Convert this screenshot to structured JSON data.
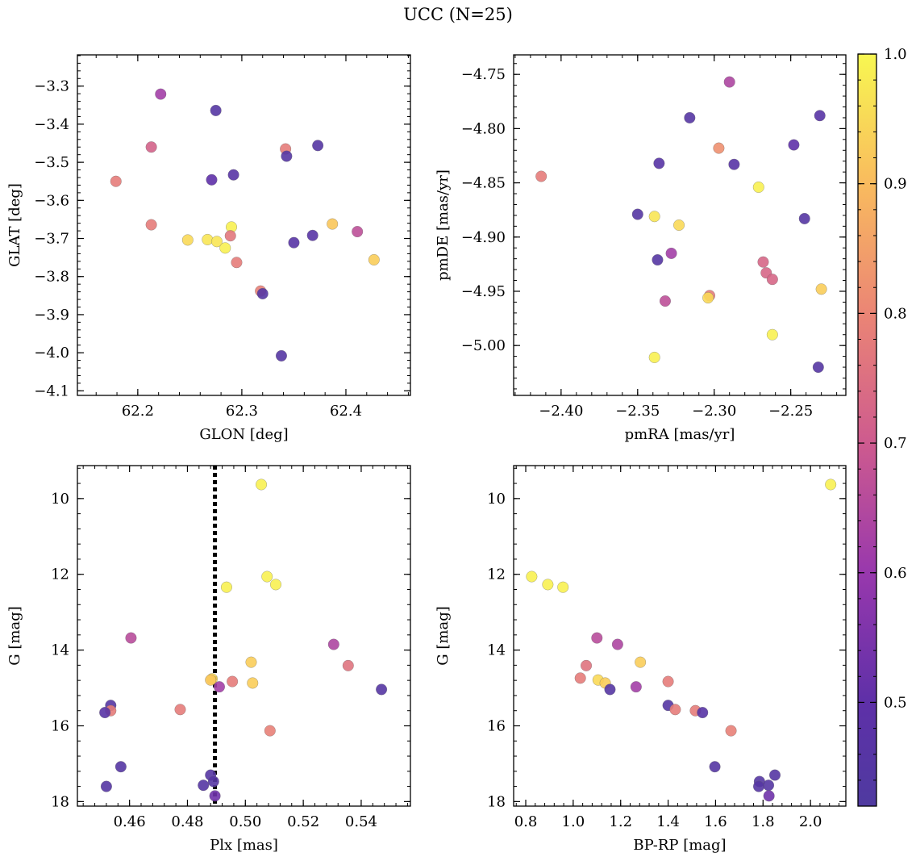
{
  "figure": {
    "title": "UCC (N=25)"
  },
  "colorbar": {
    "colormap": "plasma",
    "range": [
      0.42,
      1.0
    ],
    "ticks": [
      0.5,
      0.6,
      0.7,
      0.8,
      0.9,
      1.0
    ],
    "tick_labels": [
      "0.5",
      "0.6",
      "0.7",
      "0.8",
      "0.9",
      "1.0"
    ]
  },
  "chart_data": [
    {
      "type": "scatter",
      "xlabel": "GLON [deg]",
      "ylabel": "GLAT [deg]",
      "xlim": [
        62.142,
        62.462
      ],
      "ylim": [
        -4.112,
        -3.218
      ],
      "y_inverted": false,
      "xticks": [
        62.2,
        62.3,
        62.4
      ],
      "xtick_labels": [
        "62.2",
        "62.3",
        "62.4"
      ],
      "yticks": [
        -4.1,
        -4.0,
        -3.9,
        -3.8,
        -3.7,
        -3.6,
        -3.5,
        -3.4,
        -3.3
      ],
      "ytick_labels": [
        "−4.1",
        "−4.0",
        "−3.9",
        "−3.8",
        "−3.7",
        "−3.6",
        "−3.5",
        "−3.4",
        "−3.3"
      ],
      "points": [
        {
          "x": 62.222,
          "y": -3.321,
          "c": 0.62
        },
        {
          "x": 62.275,
          "y": -3.364,
          "c": 0.45
        },
        {
          "x": 62.373,
          "y": -3.456,
          "c": 0.45
        },
        {
          "x": 62.213,
          "y": -3.46,
          "c": 0.72
        },
        {
          "x": 62.342,
          "y": -3.465,
          "c": 0.78
        },
        {
          "x": 62.343,
          "y": -3.484,
          "c": 0.45
        },
        {
          "x": 62.292,
          "y": -3.533,
          "c": 0.47
        },
        {
          "x": 62.271,
          "y": -3.546,
          "c": 0.5
        },
        {
          "x": 62.179,
          "y": -3.55,
          "c": 0.78
        },
        {
          "x": 62.213,
          "y": -3.664,
          "c": 0.78
        },
        {
          "x": 62.387,
          "y": -3.662,
          "c": 0.92
        },
        {
          "x": 62.29,
          "y": -3.67,
          "c": 0.99
        },
        {
          "x": 62.411,
          "y": -3.682,
          "c": 0.67
        },
        {
          "x": 62.368,
          "y": -3.692,
          "c": 0.47
        },
        {
          "x": 62.289,
          "y": -3.693,
          "c": 0.77
        },
        {
          "x": 62.267,
          "y": -3.703,
          "c": 0.97
        },
        {
          "x": 62.248,
          "y": -3.704,
          "c": 0.95
        },
        {
          "x": 62.276,
          "y": -3.708,
          "c": 0.97
        },
        {
          "x": 62.35,
          "y": -3.711,
          "c": 0.47
        },
        {
          "x": 62.284,
          "y": -3.725,
          "c": 0.99
        },
        {
          "x": 62.427,
          "y": -3.756,
          "c": 0.93
        },
        {
          "x": 62.295,
          "y": -3.763,
          "c": 0.78
        },
        {
          "x": 62.318,
          "y": -3.838,
          "c": 0.79
        },
        {
          "x": 62.32,
          "y": -3.845,
          "c": 0.45
        },
        {
          "x": 62.338,
          "y": -4.008,
          "c": 0.45
        }
      ]
    },
    {
      "type": "scatter",
      "xlabel": "pmRA [mas/yr]",
      "ylabel": "pmDE [mas/yr]",
      "xlim": [
        -2.431,
        -2.214
      ],
      "ylim": [
        -5.046,
        -4.732
      ],
      "y_inverted": false,
      "xticks": [
        -2.4,
        -2.35,
        -2.3,
        -2.25
      ],
      "xtick_labels": [
        "−2.40",
        "−2.35",
        "−2.30",
        "−2.25"
      ],
      "yticks": [
        -5.0,
        -4.95,
        -4.9,
        -4.85,
        -4.8,
        -4.75
      ],
      "ytick_labels": [
        "−5.00",
        "−4.95",
        "−4.90",
        "−4.85",
        "−4.80",
        "−4.75"
      ],
      "points": [
        {
          "x": -2.29,
          "y": -4.757,
          "c": 0.64
        },
        {
          "x": -2.316,
          "y": -4.79,
          "c": 0.45
        },
        {
          "x": -2.231,
          "y": -4.788,
          "c": 0.47
        },
        {
          "x": -2.248,
          "y": -4.815,
          "c": 0.5
        },
        {
          "x": -2.297,
          "y": -4.818,
          "c": 0.82
        },
        {
          "x": -2.336,
          "y": -4.832,
          "c": 0.47
        },
        {
          "x": -2.287,
          "y": -4.833,
          "c": 0.47
        },
        {
          "x": -2.413,
          "y": -4.844,
          "c": 0.78
        },
        {
          "x": -2.271,
          "y": -4.854,
          "c": 0.99
        },
        {
          "x": -2.35,
          "y": -4.879,
          "c": 0.45
        },
        {
          "x": -2.339,
          "y": -4.881,
          "c": 0.97
        },
        {
          "x": -2.241,
          "y": -4.883,
          "c": 0.45
        },
        {
          "x": -2.323,
          "y": -4.889,
          "c": 0.95
        },
        {
          "x": -2.328,
          "y": -4.915,
          "c": 0.62
        },
        {
          "x": -2.337,
          "y": -4.921,
          "c": 0.45
        },
        {
          "x": -2.268,
          "y": -4.923,
          "c": 0.73
        },
        {
          "x": -2.266,
          "y": -4.933,
          "c": 0.73
        },
        {
          "x": -2.262,
          "y": -4.939,
          "c": 0.73
        },
        {
          "x": -2.23,
          "y": -4.948,
          "c": 0.93
        },
        {
          "x": -2.303,
          "y": -4.954,
          "c": 0.78
        },
        {
          "x": -2.304,
          "y": -4.956,
          "c": 0.95
        },
        {
          "x": -2.332,
          "y": -4.959,
          "c": 0.67
        },
        {
          "x": -2.262,
          "y": -4.99,
          "c": 0.99
        },
        {
          "x": -2.339,
          "y": -5.011,
          "c": 0.99
        },
        {
          "x": -2.232,
          "y": -5.02,
          "c": 0.45
        }
      ]
    },
    {
      "type": "scatter",
      "xlabel": "Plx [mas]",
      "ylabel": "G [mag]",
      "xlim": [
        0.442,
        0.557
      ],
      "ylim": [
        18.12,
        9.13
      ],
      "y_inverted": true,
      "xticks": [
        0.46,
        0.48,
        0.5,
        0.52,
        0.54
      ],
      "xtick_labels": [
        "0.46",
        "0.48",
        "0.50",
        "0.52",
        "0.54"
      ],
      "yticks": [
        10,
        12,
        14,
        16,
        18
      ],
      "ytick_labels": [
        "10",
        "12",
        "14",
        "16",
        "18"
      ],
      "vline": {
        "x": 0.4895,
        "style": "dotted"
      },
      "points": [
        {
          "x": 0.5055,
          "y": 9.63,
          "c": 0.99
        },
        {
          "x": 0.5075,
          "y": 12.06,
          "c": 0.99
        },
        {
          "x": 0.5105,
          "y": 12.27,
          "c": 0.99
        },
        {
          "x": 0.4935,
          "y": 12.34,
          "c": 0.99
        },
        {
          "x": 0.4605,
          "y": 13.68,
          "c": 0.66
        },
        {
          "x": 0.5305,
          "y": 13.85,
          "c": 0.64
        },
        {
          "x": 0.502,
          "y": 14.32,
          "c": 0.93
        },
        {
          "x": 0.5355,
          "y": 14.41,
          "c": 0.76
        },
        {
          "x": 0.4885,
          "y": 14.76,
          "c": 0.95
        },
        {
          "x": 0.488,
          "y": 14.79,
          "c": 0.92
        },
        {
          "x": 0.4955,
          "y": 14.83,
          "c": 0.78
        },
        {
          "x": 0.5025,
          "y": 14.87,
          "c": 0.93
        },
        {
          "x": 0.491,
          "y": 14.97,
          "c": 0.62
        },
        {
          "x": 0.547,
          "y": 15.04,
          "c": 0.45
        },
        {
          "x": 0.4535,
          "y": 15.46,
          "c": 0.45
        },
        {
          "x": 0.4775,
          "y": 15.57,
          "c": 0.78
        },
        {
          "x": 0.4535,
          "y": 15.6,
          "c": 0.78
        },
        {
          "x": 0.4515,
          "y": 15.65,
          "c": 0.47
        },
        {
          "x": 0.5085,
          "y": 16.13,
          "c": 0.79
        },
        {
          "x": 0.457,
          "y": 17.08,
          "c": 0.45
        },
        {
          "x": 0.488,
          "y": 17.3,
          "c": 0.45
        },
        {
          "x": 0.489,
          "y": 17.47,
          "c": 0.45
        },
        {
          "x": 0.4855,
          "y": 17.57,
          "c": 0.45
        },
        {
          "x": 0.452,
          "y": 17.6,
          "c": 0.45
        },
        {
          "x": 0.4895,
          "y": 17.85,
          "c": 0.53
        }
      ]
    },
    {
      "type": "scatter",
      "xlabel": "BP-RP [mag]",
      "ylabel": "G [mag]",
      "xlim": [
        0.749,
        2.149
      ],
      "ylim": [
        18.12,
        9.13
      ],
      "y_inverted": true,
      "xticks": [
        0.8,
        1.0,
        1.2,
        1.4,
        1.6,
        1.8,
        2.0
      ],
      "xtick_labels": [
        "0.8",
        "1.0",
        "1.2",
        "1.4",
        "1.6",
        "1.8",
        "2.0"
      ],
      "yticks": [
        10,
        12,
        14,
        16,
        18
      ],
      "ytick_labels": [
        "10",
        "12",
        "14",
        "16",
        "18"
      ],
      "points": [
        {
          "x": 2.085,
          "y": 9.63,
          "c": 0.99
        },
        {
          "x": 0.825,
          "y": 12.06,
          "c": 0.99
        },
        {
          "x": 0.893,
          "y": 12.27,
          "c": 0.99
        },
        {
          "x": 0.957,
          "y": 12.34,
          "c": 0.99
        },
        {
          "x": 1.1,
          "y": 13.68,
          "c": 0.66
        },
        {
          "x": 1.187,
          "y": 13.85,
          "c": 0.64
        },
        {
          "x": 1.283,
          "y": 14.32,
          "c": 0.93
        },
        {
          "x": 1.055,
          "y": 14.41,
          "c": 0.76
        },
        {
          "x": 1.03,
          "y": 14.74,
          "c": 0.78
        },
        {
          "x": 1.105,
          "y": 14.79,
          "c": 0.95
        },
        {
          "x": 1.4,
          "y": 14.83,
          "c": 0.78
        },
        {
          "x": 1.135,
          "y": 14.87,
          "c": 0.93
        },
        {
          "x": 1.265,
          "y": 14.97,
          "c": 0.62
        },
        {
          "x": 1.155,
          "y": 15.04,
          "c": 0.45
        },
        {
          "x": 1.4,
          "y": 15.46,
          "c": 0.45
        },
        {
          "x": 1.43,
          "y": 15.57,
          "c": 0.78
        },
        {
          "x": 1.515,
          "y": 15.6,
          "c": 0.78
        },
        {
          "x": 1.545,
          "y": 15.65,
          "c": 0.47
        },
        {
          "x": 1.665,
          "y": 16.13,
          "c": 0.79
        },
        {
          "x": 1.597,
          "y": 17.08,
          "c": 0.45
        },
        {
          "x": 1.85,
          "y": 17.3,
          "c": 0.45
        },
        {
          "x": 1.785,
          "y": 17.47,
          "c": 0.45
        },
        {
          "x": 1.823,
          "y": 17.57,
          "c": 0.45
        },
        {
          "x": 1.782,
          "y": 17.6,
          "c": 0.45
        },
        {
          "x": 1.825,
          "y": 17.85,
          "c": 0.53
        }
      ]
    }
  ]
}
